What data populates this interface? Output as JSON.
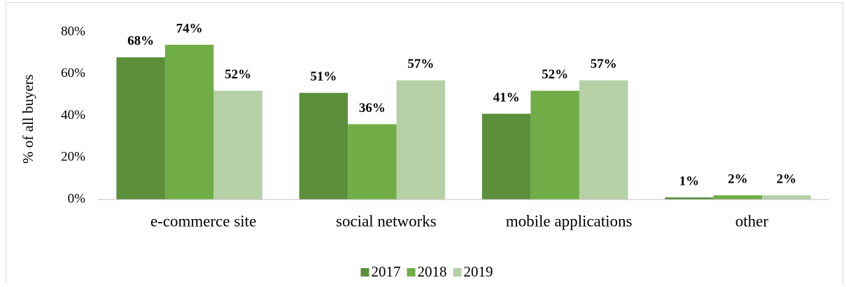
{
  "chart_data": {
    "type": "bar",
    "ylabel": "% of all buyers",
    "categories": [
      "e-commerce site",
      "social networks",
      "mobile applications",
      "other"
    ],
    "series": [
      {
        "name": "2017",
        "color": "#5b8f3b",
        "values": [
          68,
          51,
          41,
          1
        ],
        "value_labels": [
          "68%",
          "51%",
          "41%",
          "1%"
        ]
      },
      {
        "name": "2018",
        "color": "#70ad47",
        "values": [
          74,
          36,
          52,
          2
        ],
        "value_labels": [
          "74%",
          "36%",
          "52%",
          "2%"
        ]
      },
      {
        "name": "2019",
        "color": "#b5d0a5",
        "values": [
          52,
          57,
          57,
          2
        ],
        "value_labels": [
          "52%",
          "57%",
          "57%",
          "2%"
        ]
      }
    ],
    "ylim": [
      0,
      80
    ],
    "yticks": [
      {
        "value": 0,
        "label": "0%"
      },
      {
        "value": 20,
        "label": "20%"
      },
      {
        "value": 40,
        "label": "40%"
      },
      {
        "value": 60,
        "label": "60%"
      },
      {
        "value": 80,
        "label": "80%"
      }
    ],
    "grid": false,
    "legend": "bottom"
  }
}
